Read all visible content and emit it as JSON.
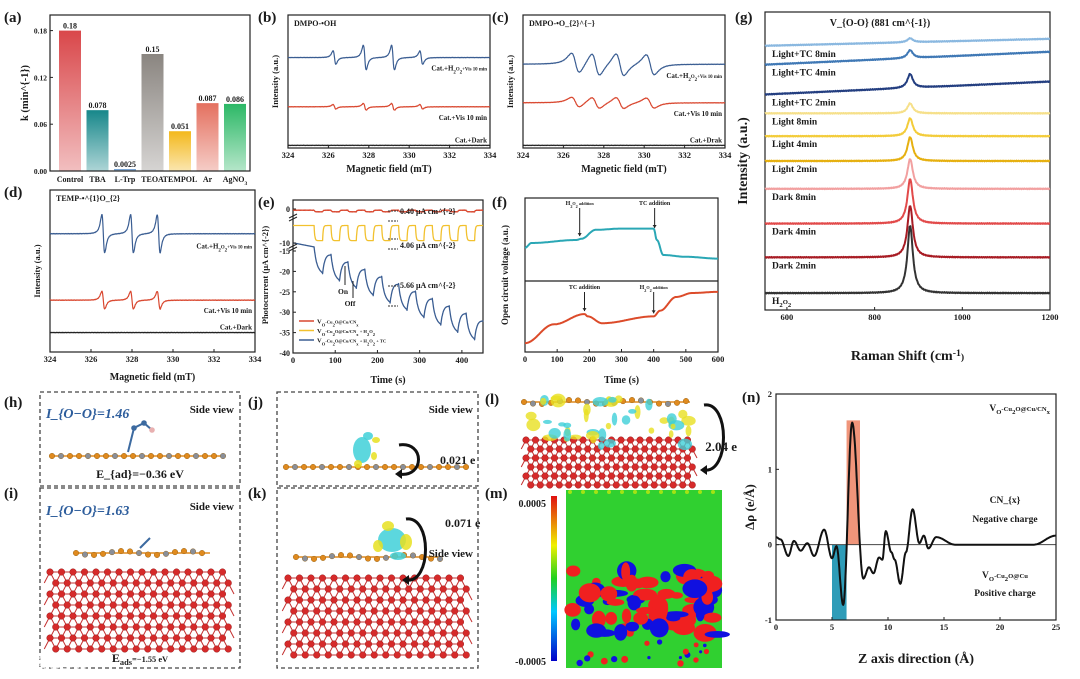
{
  "panel_labels": {
    "a": "(a)",
    "b": "(b)",
    "c": "(c)",
    "d": "(d)",
    "e": "(e)",
    "f": "(f)",
    "g": "(g)",
    "h": "(h)",
    "i": "(i)",
    "j": "(j)",
    "k": "(k)",
    "l": "(l)",
    "m": "(m)",
    "n": "(n)"
  },
  "colors": {
    "bond_label": "#2d5d9c",
    "cu": "#d62a2a",
    "cn_c": "#e08a1e",
    "cn_n": "#8a8f99",
    "iso_yellow": "#e8e020",
    "iso_cyan": "#3fd0d8"
  },
  "chart_data": [
    {
      "id": "a",
      "type": "bar",
      "categories": [
        "Control",
        "TBA",
        "L-Trp",
        "TEOA",
        "TEMPOL",
        "Ar",
        "AgNO_{3}"
      ],
      "values": [
        0.18,
        0.078,
        0.0025,
        0.15,
        0.051,
        0.087,
        0.086
      ],
      "value_labels": [
        "0.18",
        "0.078",
        "0.0025",
        "0.15",
        "0.051",
        "0.087",
        "0.086"
      ],
      "bar_colors": [
        "#d9474a",
        "#17878a",
        "#5a8fc9",
        "#8a8580",
        "#f3b81c",
        "#e4705f",
        "#2cb866"
      ],
      "ylabel": "k (min^{-1})",
      "xlabel": "",
      "ylim": [
        0,
        0.2
      ],
      "yticks": [
        0,
        0.06,
        0.12,
        0.18
      ],
      "ytick_labels": [
        "0.00",
        "0.06",
        "0.12",
        "0.18"
      ]
    },
    {
      "id": "b",
      "type": "line",
      "title": "DMPO-•OH",
      "xlabel": "Magnetic field (mT)",
      "ylabel": "Intensity (a.u.)",
      "xlim": [
        324,
        334
      ],
      "ylim": [
        0,
        10
      ],
      "xticks": [
        324,
        326,
        328,
        330,
        332,
        334
      ],
      "xtick_labels": [
        "324",
        "326",
        "328",
        "330",
        "332",
        "334"
      ],
      "linewidth_mT": 0.12,
      "series": [
        {
          "name": "Cat.+H_{2}O_{2}+Vis 10 min",
          "color": "#3a5d92",
          "offset": 6.8,
          "peaks": [
            [
              326.3,
              0.6
            ],
            [
              327.8,
              1.1
            ],
            [
              329.2,
              1.1
            ],
            [
              330.6,
              0.6
            ]
          ]
        },
        {
          "name": "Cat.+Vis 10 min",
          "color": "#d9472f",
          "offset": 3.1,
          "peaks": [
            [
              326.3,
              0.2
            ],
            [
              327.8,
              0.3
            ],
            [
              329.2,
              0.3
            ],
            [
              330.6,
              0.2
            ]
          ]
        },
        {
          "name": "Cat.+Dark",
          "color": "#222222",
          "offset": 0.2,
          "peaks": []
        }
      ]
    },
    {
      "id": "c",
      "type": "line",
      "title": "DMPO-•O_{2}^{−}",
      "xlabel": "Magnetic field (mT)",
      "ylabel": "Intensity (a.u.)",
      "xlim": [
        324,
        334
      ],
      "ylim": [
        0,
        10
      ],
      "xticks": [
        324,
        326,
        328,
        330,
        332,
        334
      ],
      "xtick_labels": [
        "324",
        "326",
        "328",
        "330",
        "332",
        "334"
      ],
      "linewidth_mT": 0.35,
      "series": [
        {
          "name": "Cat.+H_{2}O_{2}+Vis 10 min",
          "color": "#3a5d92",
          "offset": 6.3,
          "peaks": [
            [
              326.6,
              0.9
            ],
            [
              327.6,
              1.0
            ],
            [
              328.8,
              1.0
            ],
            [
              330.3,
              0.9
            ]
          ]
        },
        {
          "name": "Cat.+Vis 10 min",
          "color": "#d9472f",
          "offset": 3.4,
          "peaks": [
            [
              326.6,
              0.45
            ],
            [
              327.6,
              0.5
            ],
            [
              328.8,
              0.5
            ],
            [
              330.3,
              0.45
            ]
          ]
        },
        {
          "name": "Cat.+Drak",
          "color": "#222222",
          "offset": 0.2,
          "peaks": []
        }
      ]
    },
    {
      "id": "d",
      "type": "line",
      "title": "TEMP-•^{1}O_{2}",
      "xlabel": "Magnetic field (mT)",
      "ylabel": "Intensity (a.u.)",
      "xlim": [
        324,
        334
      ],
      "ylim": [
        0,
        10
      ],
      "xticks": [
        324,
        326,
        328,
        330,
        332,
        334
      ],
      "xtick_labels": [
        "324",
        "326",
        "328",
        "330",
        "332",
        "334"
      ],
      "linewidth_mT": 0.12,
      "series": [
        {
          "name": "Cat.+H_{2}O_{2}+Vis 10 min",
          "color": "#3a5d92",
          "offset": 7.3,
          "peaks": [
            [
              326.6,
              1.4
            ],
            [
              328.0,
              1.4
            ],
            [
              329.3,
              1.4
            ]
          ]
        },
        {
          "name": "Cat.+Vis 10 min",
          "color": "#d9472f",
          "offset": 3.2,
          "peaks": [
            [
              326.6,
              0.65
            ],
            [
              328.0,
              0.65
            ],
            [
              329.3,
              0.65
            ]
          ]
        },
        {
          "name": "Cat.+Dark",
          "color": "#222222",
          "offset": 1.2,
          "peaks": []
        }
      ]
    },
    {
      "id": "e",
      "type": "line",
      "xlabel": "Time (s)",
      "ylabel": "Photocurrent (μA cm^{-2})",
      "xlim": [
        0,
        450
      ],
      "xticks": [
        0,
        100,
        200,
        300,
        400
      ],
      "xtick_labels": [
        "0",
        "100",
        "200",
        "300",
        "400"
      ],
      "yticks": [
        0,
        -10,
        -15,
        -20,
        -25,
        -30,
        -35,
        -40
      ],
      "ytick_labels": [
        "0",
        "-10",
        "-15",
        "-20",
        "-25",
        "-30",
        "-35",
        "-40"
      ],
      "cycle_period_s": 40,
      "first_light_on_s": 50,
      "series": [
        {
          "name": "V_{O}-Cu_{2}O@Cu/CN_{x}",
          "color": "#d9472f",
          "dark_level": -0.3,
          "photocurrent": 0.4
        },
        {
          "name": "V_{O}-Cu_{2}O@Cu/CN_{x} + H_{2}O_{2}",
          "color": "#f2c12e",
          "dark_level": -5.3,
          "photocurrent": 4.06
        },
        {
          "name": "V_{O}-Cu_{2}O@Cu/CN_{x} + H_{2}O_{2} + TC",
          "color": "#3a5d92",
          "dark_level": -13.0,
          "drift_per_s": -0.045,
          "photocurrent": 5.66
        }
      ],
      "annotations": [
        "0.40 μA cm^{-2}",
        "4.06 μA cm^{-2}",
        "5.66 μA cm^{-2}",
        "On",
        "Off"
      ]
    },
    {
      "id": "f",
      "type": "line",
      "xlabel": "Time (s)",
      "ylabel": "Open circuit voltage (a.u.)",
      "xlim": [
        0,
        600
      ],
      "xticks": [
        0,
        100,
        200,
        300,
        400,
        500,
        600
      ],
      "xtick_labels": [
        "0",
        "100",
        "200",
        "300",
        "400",
        "500",
        "600"
      ],
      "series": [
        {
          "name": "upper",
          "color": "#2aa7b5",
          "points": [
            [
              0,
              0.42
            ],
            [
              20,
              0.5
            ],
            [
              160,
              0.55
            ],
            [
              175,
              0.57
            ],
            [
              220,
              0.72
            ],
            [
              300,
              0.74
            ],
            [
              400,
              0.74
            ],
            [
              410,
              0.55
            ],
            [
              430,
              0.3
            ],
            [
              500,
              0.27
            ],
            [
              600,
              0.24
            ]
          ],
          "annotations": [
            {
              "text": "H_{2}O_{2} addition",
              "t": 170
            },
            {
              "text": "TC addition",
              "t": 403
            }
          ]
        },
        {
          "name": "lower",
          "color": "#dc4b2a",
          "points": [
            [
              0,
              0.05
            ],
            [
              90,
              0.38
            ],
            [
              185,
              0.56
            ],
            [
              195,
              0.52
            ],
            [
              240,
              0.4
            ],
            [
              400,
              0.52
            ],
            [
              420,
              0.62
            ],
            [
              470,
              0.86
            ],
            [
              520,
              0.93
            ],
            [
              600,
              0.95
            ]
          ],
          "annotations": [
            {
              "text": "TC addition",
              "t": 185
            },
            {
              "text": "H_{2}O_{2} addition",
              "t": 400
            }
          ]
        }
      ]
    },
    {
      "id": "g",
      "type": "line",
      "xlabel": "Raman Shift (cm^{-1})",
      "ylabel": "Intensity (a.u.)",
      "xlim": [
        550,
        1200
      ],
      "ylim": [
        0,
        300
      ],
      "xticks": [
        600,
        800,
        1000,
        1200
      ],
      "xtick_labels": [
        "600",
        "800",
        "1000",
        "1200"
      ],
      "peak_position": 881,
      "peak_label": "V_{O-O} (881 cm^{-1})",
      "series": [
        {
          "name": "Light+TC 8min",
          "color": "#8ab8e0",
          "baseline": [
            266,
            273
          ],
          "peak": 4
        },
        {
          "name": "Light+TC 4min",
          "color": "#3f78b5",
          "baseline": [
            247,
            260
          ],
          "peak": 8
        },
        {
          "name": "Light+TC 2min",
          "color": "#233e80",
          "baseline": [
            217,
            230
          ],
          "peak": 14
        },
        {
          "name": "Light 8min",
          "color": "#f6e08a",
          "baseline": [
            198,
            198
          ],
          "peak": 10
        },
        {
          "name": "Light 4min",
          "color": "#f3cc3a",
          "baseline": [
            175,
            175
          ],
          "peak": 18
        },
        {
          "name": "Light 2min",
          "color": "#e6b010",
          "baseline": [
            150,
            150
          ],
          "peak": 24
        },
        {
          "name": "Dark 8min",
          "color": "#f2a0a0",
          "baseline": [
            122,
            122
          ],
          "peak": 30
        },
        {
          "name": "Dark 4min",
          "color": "#e24a4a",
          "baseline": [
            87,
            87
          ],
          "peak": 45
        },
        {
          "name": "Dark 2min",
          "color": "#a81c24",
          "baseline": [
            53,
            53
          ],
          "peak": 52
        },
        {
          "name": "H_{2}O_{2}",
          "color": "#333333",
          "baseline": [
            17,
            17
          ],
          "peak": 68
        }
      ]
    },
    {
      "id": "n",
      "type": "line",
      "xlabel": "Z axis direction (Å)",
      "ylabel": "Δρ (e/Å)",
      "xlim": [
        0,
        25
      ],
      "ylim": [
        -1,
        2
      ],
      "xticks": [
        0,
        5,
        10,
        15,
        20,
        25
      ],
      "xtick_labels": [
        "0",
        "5",
        "10",
        "15",
        "20",
        "25"
      ],
      "yticks": [
        -1,
        0,
        1,
        2
      ],
      "ytick_labels": [
        "-1",
        "0",
        "1",
        "2"
      ],
      "points": [
        [
          0,
          0.1
        ],
        [
          0.4,
          0.07
        ],
        [
          1.1,
          -0.15
        ],
        [
          1.6,
          0.05
        ],
        [
          2.2,
          -0.08
        ],
        [
          2.8,
          0.02
        ],
        [
          3.4,
          -0.15
        ],
        [
          4.3,
          0.2
        ],
        [
          5.0,
          -0.18
        ],
        [
          5.4,
          -0.02
        ],
        [
          6.0,
          -0.8
        ],
        [
          6.8,
          1.62
        ],
        [
          7.8,
          -0.45
        ],
        [
          8.3,
          -0.3
        ],
        [
          8.7,
          -0.38
        ],
        [
          9.2,
          -0.17
        ],
        [
          9.5,
          -0.2
        ],
        [
          9.8,
          0.18
        ],
        [
          10.3,
          -0.1
        ],
        [
          10.6,
          -0.2
        ],
        [
          11.1,
          -0.52
        ],
        [
          11.6,
          -0.1
        ],
        [
          12.2,
          0.47
        ],
        [
          12.8,
          0.02
        ],
        [
          13.2,
          0.12
        ],
        [
          13.6,
          -0.05
        ],
        [
          14.3,
          0.1
        ],
        [
          16,
          0
        ],
        [
          23,
          0
        ],
        [
          25,
          0.12
        ]
      ],
      "highlight_positive": {
        "range": [
          6.3,
          7.5
        ],
        "top": 1.65,
        "color": "#f0957a"
      },
      "highlight_negative": {
        "range": [
          5.0,
          6.3
        ],
        "bottom": -1,
        "color": "#2e9cb8"
      },
      "annotations": [
        "V_{O}-Cu_{2}O@Cu/CN_{x}",
        "CN_{x}",
        "Negative charge",
        "V_{O}-Cu_{2}O@Cu",
        "Positive charge"
      ]
    }
  ],
  "structures": {
    "h": {
      "bond_label": "I_{O−O}=1.46",
      "view": "Side view",
      "energy": "E_{ad}=−0.36 eV"
    },
    "i": {
      "bond_label": "I_{O−O}=1.63",
      "view": "Side view",
      "energy": "E_{ads}=−1.55 eV"
    },
    "j": {
      "view": "Side view",
      "charge": "0.021 e"
    },
    "k": {
      "view": "Side view",
      "charge": "0.071 e"
    },
    "l": {
      "charge": "2.04 e"
    },
    "m": {
      "colorbar_max": "0.0005",
      "colorbar_min": "-0.0005"
    }
  },
  "watermark": "大数跨境"
}
